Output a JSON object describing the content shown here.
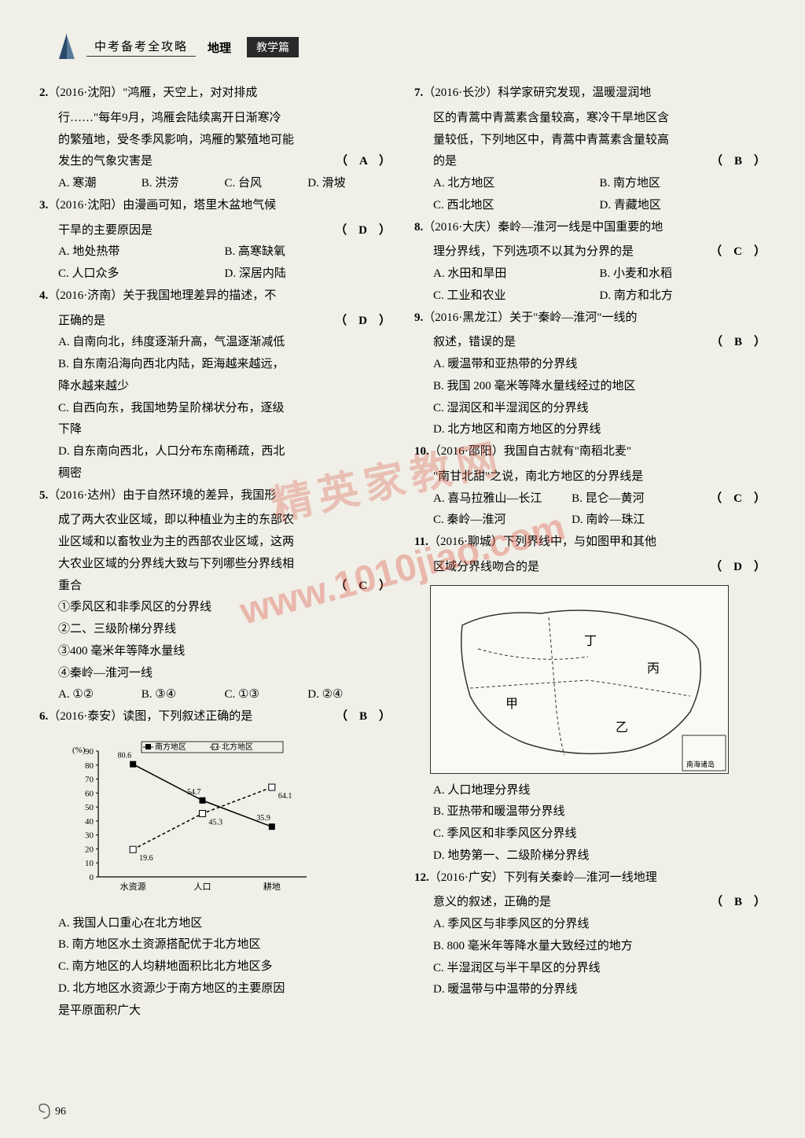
{
  "header": {
    "title": "中考备考全攻略",
    "subject": "地理",
    "badge": "教学篇"
  },
  "watermark": {
    "url": "www.1010jiao.com",
    "cn": "精英家教网"
  },
  "page_number": "96",
  "left_column": {
    "q2": {
      "num": "2.",
      "src": "（2016·沈阳）",
      "text1": "\"鸿雁，天空上，对对排成",
      "text2": "行……\"每年9月，鸿雁会陆续离开日渐寒冷",
      "text3": "的繁殖地，受冬季风影响，鸿雁的繁殖地可能",
      "text4": "发生的气象灾害是",
      "answer": "（　A　）",
      "opts": [
        "A. 寒潮",
        "B. 洪涝",
        "C. 台风",
        "D. 滑坡"
      ]
    },
    "q3": {
      "num": "3.",
      "src": "（2016·沈阳）",
      "text1": "由漫画可知，塔里木盆地气候",
      "text2": "干旱的主要原因是",
      "answer": "（　D　）",
      "opts": [
        "A. 地处热带",
        "B. 高寒缺氧",
        "C. 人口众多",
        "D. 深居内陆"
      ]
    },
    "q4": {
      "num": "4.",
      "src": "（2016·济南）",
      "text1": "关于我国地理差异的描述，不",
      "text2": "正确的是",
      "answer": "（　D　）",
      "optA": "A. 自南向北，纬度逐渐升高，气温逐渐减低",
      "optB1": "B. 自东南沿海向西北内陆，距海越来越远，",
      "optB2": "降水越来越少",
      "optC1": "C. 自西向东，我国地势呈阶梯状分布，逐级",
      "optC2": "下降",
      "optD1": "D. 自东南向西北，人口分布东南稀疏，西北",
      "optD2": "稠密"
    },
    "q5": {
      "num": "5.",
      "src": "（2016·达州）",
      "text1": "由于自然环境的差异，我国形",
      "text2": "成了两大农业区域，即以种植业为主的东部农",
      "text3": "业区域和以畜牧业为主的西部农业区域，这两",
      "text4": "大农业区域的分界线大致与下列哪些分界线相",
      "text5": "重合",
      "answer": "（　C　）",
      "sub1": "①季风区和非季风区的分界线",
      "sub2": "②二、三级阶梯分界线",
      "sub3": "③400 毫米年等降水量线",
      "sub4": "④秦岭—淮河一线",
      "opts": [
        "A. ①②",
        "B. ③④",
        "C. ①③",
        "D. ②④"
      ]
    },
    "q6": {
      "num": "6.",
      "src": "（2016·泰安）",
      "text1": "读图，下列叙述正确的是",
      "answer": "（　B　）",
      "chart": {
        "type": "line",
        "ylabel": "(%)",
        "ylim": [
          0,
          90
        ],
        "ytick_step": 10,
        "categories": [
          "水资源",
          "人口",
          "耕地"
        ],
        "series": [
          {
            "name": "南方地区",
            "marker": "square-filled",
            "values": [
              80.6,
              54.7,
              35.9
            ],
            "color": "#000000"
          },
          {
            "name": "北方地区",
            "marker": "square-open",
            "values": [
              19.6,
              45.3,
              64.1
            ],
            "color": "#000000",
            "dash": "dashed"
          }
        ],
        "labels_shown": [
          "80.6",
          "54.7",
          "45.3",
          "64.1",
          "35.9",
          "19.6"
        ],
        "background_color": "#f0efe8",
        "line_width": 1.5,
        "font_size": 11
      },
      "optA": "A. 我国人口重心在北方地区",
      "optB": "B. 南方地区水土资源搭配优于北方地区",
      "optC": "C. 南方地区的人均耕地面积比北方地区多",
      "optD1": "D. 北方地区水资源少于南方地区的主要原因",
      "optD2": "是平原面积广大"
    }
  },
  "right_column": {
    "q7": {
      "num": "7.",
      "src": "（2016·长沙）",
      "text1": "科学家研究发现，温暖湿润地",
      "text2": "区的青蒿中青蒿素含量较高，寒冷干旱地区含",
      "text3": "量较低，下列地区中，青蒿中青蒿素含量较高",
      "text4": "的是",
      "answer": "（　B　）",
      "opts": [
        "A. 北方地区",
        "B. 南方地区",
        "C. 西北地区",
        "D. 青藏地区"
      ]
    },
    "q8": {
      "num": "8.",
      "src": "（2016·大庆）",
      "text1": "秦岭—淮河一线是中国重要的地",
      "text2": "理分界线，下列选项不以其为分界的是",
      "answer": "（　C　）",
      "opts": [
        "A. 水田和旱田",
        "B. 小麦和水稻",
        "C. 工业和农业",
        "D. 南方和北方"
      ]
    },
    "q9": {
      "num": "9.",
      "src": "（2016·黑龙江）",
      "text1": "关于\"秦岭—淮河\"一线的",
      "text2": "叙述，错误的是",
      "answer": "（　B　）",
      "optA": "A. 暖温带和亚热带的分界线",
      "optB": "B. 我国 200 毫米等降水量线经过的地区",
      "optC": "C. 湿润区和半湿润区的分界线",
      "optD": "D. 北方地区和南方地区的分界线"
    },
    "q10": {
      "num": "10.",
      "src": "（2016·邵阳）",
      "text1": "我国自古就有\"南稻北麦\"",
      "text2": "\"南甘北甜\"之说，南北方地区的分界线是",
      "answer": "（　C　）",
      "opts": [
        "A. 喜马拉雅山—长江",
        "B. 昆仑—黄河",
        "C. 秦岭—淮河",
        "D. 南岭—珠江"
      ]
    },
    "q11": {
      "num": "11.",
      "src": "（2016·聊城）",
      "text1": "下列界线中，与如图甲和其他",
      "text2": "区域分界线吻合的是",
      "answer": "（　D　）",
      "map": {
        "type": "outline-map",
        "region": "China",
        "labels": [
          "丁",
          "丙",
          "甲",
          "乙"
        ],
        "inset_label": "南海诸岛",
        "border_color": "#333333",
        "background_color": "#fafaf5",
        "line_style": "dashed"
      },
      "optA": "A. 人口地理分界线",
      "optB": "B. 亚热带和暖温带分界线",
      "optC": "C. 季风区和非季风区分界线",
      "optD": "D. 地势第一、二级阶梯分界线"
    },
    "q12": {
      "num": "12.",
      "src": "（2016·广安）",
      "text1": "下列有关秦岭—淮河一线地理",
      "text2": "意义的叙述，正确的是",
      "answer": "（　B　）",
      "optA": "A. 季风区与非季风区的分界线",
      "optB": "B. 800 毫米年等降水量大致经过的地方",
      "optC": "C. 半湿润区与半干旱区的分界线",
      "optD": "D. 暖温带与中温带的分界线"
    }
  }
}
